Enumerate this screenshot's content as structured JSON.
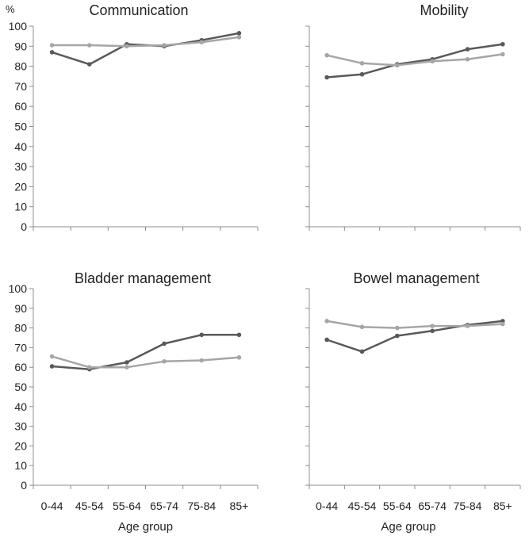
{
  "chart_data": [
    {
      "type": "line",
      "title": "Communication",
      "ylabel": "%",
      "xlabel": "",
      "ylim": [
        0,
        100
      ],
      "yticks": [
        0,
        10,
        20,
        30,
        40,
        50,
        60,
        70,
        80,
        90,
        100
      ],
      "categories": [
        "0-44",
        "45-54",
        "55-64",
        "65-74",
        "75-84",
        "85+"
      ],
      "show_x_tick_labels": false,
      "show_y_tick_labels": true,
      "series": [
        {
          "values": [
            87,
            81,
            91,
            90,
            93,
            96.5
          ],
          "color": "#595959"
        },
        {
          "values": [
            90.5,
            90.5,
            90,
            90.5,
            92,
            94.5
          ],
          "color": "#a6a6a6"
        }
      ]
    },
    {
      "type": "line",
      "title": "Mobility",
      "ylabel": "",
      "xlabel": "",
      "ylim": [
        0,
        100
      ],
      "categories": [
        "0-44",
        "45-54",
        "55-64",
        "65-74",
        "75-84",
        "85+"
      ],
      "show_x_tick_labels": false,
      "show_y_tick_labels": false,
      "series": [
        {
          "values": [
            74.5,
            76,
            81,
            83.5,
            88.5,
            91
          ],
          "color": "#595959"
        },
        {
          "values": [
            85.5,
            81.5,
            80.5,
            82.5,
            83.5,
            86
          ],
          "color": "#a6a6a6"
        }
      ]
    },
    {
      "type": "line",
      "title": "Bladder management",
      "ylabel": "",
      "xlabel": "Age group",
      "ylim": [
        0,
        100
      ],
      "yticks": [
        0,
        10,
        20,
        30,
        40,
        50,
        60,
        70,
        80,
        90,
        100
      ],
      "categories": [
        "0-44",
        "45-54",
        "55-64",
        "65-74",
        "75-84",
        "85+"
      ],
      "show_x_tick_labels": true,
      "show_y_tick_labels": true,
      "series": [
        {
          "values": [
            60.5,
            59,
            62.5,
            72,
            76.5,
            76.5
          ],
          "color": "#595959"
        },
        {
          "values": [
            65.5,
            60,
            60,
            63,
            63.5,
            65
          ],
          "color": "#a6a6a6"
        }
      ]
    },
    {
      "type": "line",
      "title": "Bowel management",
      "ylabel": "",
      "xlabel": "Age group",
      "ylim": [
        0,
        100
      ],
      "categories": [
        "0-44",
        "45-54",
        "55-64",
        "65-74",
        "75-84",
        "85+"
      ],
      "show_x_tick_labels": true,
      "show_y_tick_labels": false,
      "series": [
        {
          "values": [
            74,
            68,
            76,
            78.5,
            81.5,
            83.5
          ],
          "color": "#595959"
        },
        {
          "values": [
            83.5,
            80.5,
            80,
            81,
            81,
            82
          ],
          "color": "#a6a6a6"
        }
      ]
    }
  ]
}
